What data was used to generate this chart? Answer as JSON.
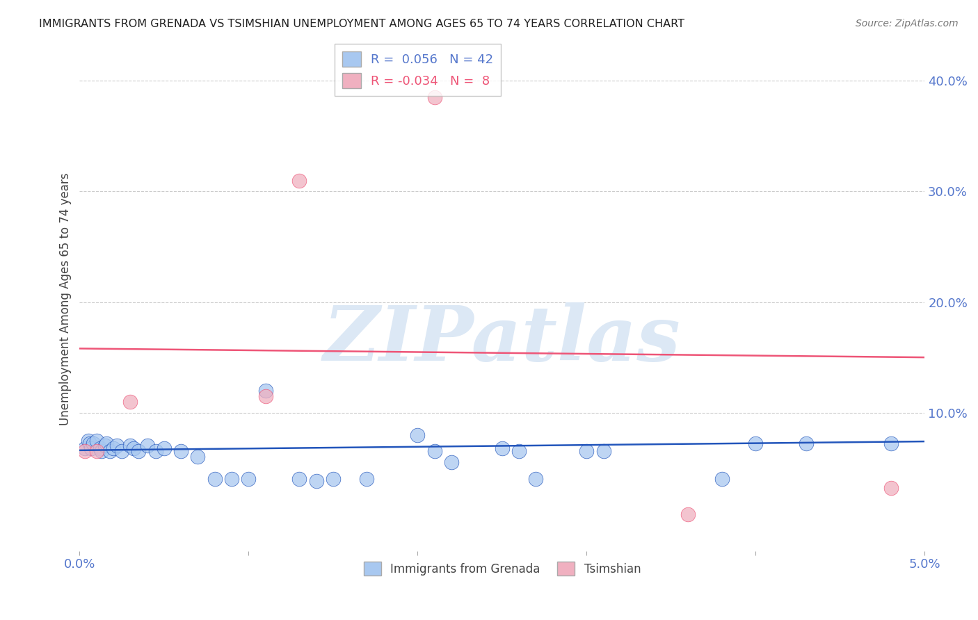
{
  "title": "IMMIGRANTS FROM GRENADA VS TSIMSHIAN UNEMPLOYMENT AMONG AGES 65 TO 74 YEARS CORRELATION CHART",
  "source": "Source: ZipAtlas.com",
  "ylabel": "Unemployment Among Ages 65 to 74 years",
  "xlim": [
    0.0,
    0.05
  ],
  "ylim": [
    -0.025,
    0.43
  ],
  "watermark": "ZIPatlas",
  "legend_blue_r": "0.056",
  "legend_blue_n": "42",
  "legend_pink_r": "-0.034",
  "legend_pink_n": "8",
  "blue_scatter_x": [
    0.0003,
    0.0005,
    0.0006,
    0.0007,
    0.0008,
    0.001,
    0.0012,
    0.0013,
    0.0015,
    0.0016,
    0.0018,
    0.002,
    0.0022,
    0.0025,
    0.003,
    0.0032,
    0.0035,
    0.004,
    0.0045,
    0.005,
    0.006,
    0.007,
    0.008,
    0.009,
    0.01,
    0.011,
    0.013,
    0.014,
    0.015,
    0.017,
    0.02,
    0.021,
    0.022,
    0.025,
    0.026,
    0.027,
    0.03,
    0.031,
    0.038,
    0.04,
    0.043,
    0.048
  ],
  "blue_scatter_y": [
    0.068,
    0.075,
    0.072,
    0.068,
    0.072,
    0.075,
    0.068,
    0.065,
    0.07,
    0.072,
    0.065,
    0.068,
    0.07,
    0.065,
    0.07,
    0.068,
    0.065,
    0.07,
    0.065,
    0.068,
    0.065,
    0.06,
    0.04,
    0.04,
    0.04,
    0.12,
    0.04,
    0.038,
    0.04,
    0.04,
    0.08,
    0.065,
    0.055,
    0.068,
    0.065,
    0.04,
    0.065,
    0.065,
    0.04,
    0.072,
    0.072,
    0.072
  ],
  "pink_scatter_x": [
    0.0003,
    0.001,
    0.003,
    0.011,
    0.013,
    0.021,
    0.036,
    0.048
  ],
  "pink_scatter_y": [
    0.065,
    0.065,
    0.11,
    0.115,
    0.31,
    0.385,
    0.008,
    0.032
  ],
  "blue_line_x": [
    0.0,
    0.05
  ],
  "blue_line_y": [
    0.066,
    0.074
  ],
  "pink_line_x": [
    0.0,
    0.05
  ],
  "pink_line_y": [
    0.158,
    0.15
  ],
  "blue_scatter_color": "#A8C8F0",
  "pink_scatter_color": "#F0B0C0",
  "blue_line_color": "#2255BB",
  "pink_line_color": "#EE5577",
  "title_color": "#222222",
  "axis_tick_color": "#5577CC",
  "grid_color": "#CCCCCC",
  "background_color": "#FFFFFF",
  "watermark_color": "#DCE8F5",
  "xtick_vals": [
    0.0,
    0.01,
    0.02,
    0.03,
    0.04,
    0.05
  ],
  "ytick_vals": [
    0.1,
    0.2,
    0.3,
    0.4
  ],
  "ytick_labels": [
    "10.0%",
    "20.0%",
    "30.0%",
    "40.0%"
  ]
}
